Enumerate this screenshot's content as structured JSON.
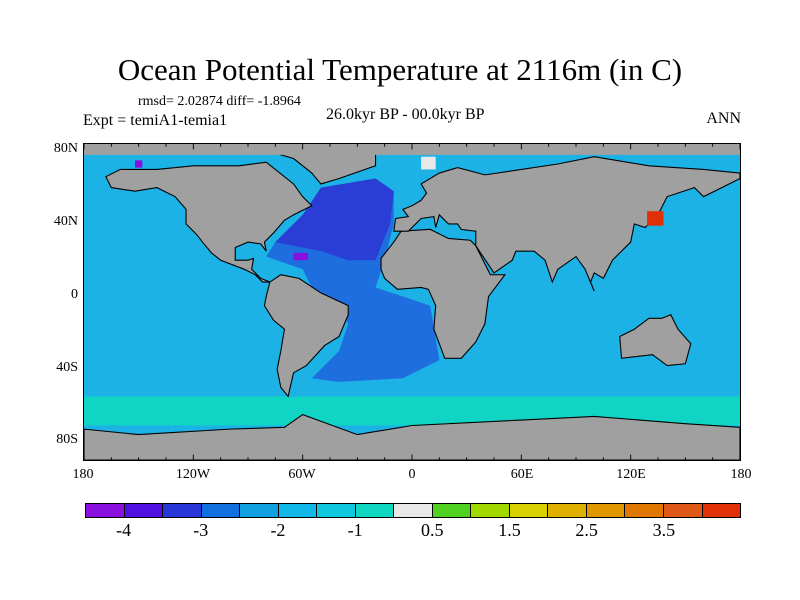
{
  "title": "Ocean Potential Temperature at 2116m (in C)",
  "stats": "rmsd= 2.02874 diff= -1.8964",
  "expt": "Expt = temiA1-temia1",
  "period": "26.0kyr BP - 00.0kyr BP",
  "season": "ANN",
  "lat_labels": [
    "80N",
    "40N",
    "0",
    "40S",
    "80S"
  ],
  "lon_labels": [
    "180",
    "120W",
    "60W",
    "0",
    "60E",
    "120E",
    "180"
  ],
  "colorbar": {
    "colors": [
      "#8a10e0",
      "#5010e0",
      "#2838d8",
      "#1070e0",
      "#10a0e0",
      "#10b8e8",
      "#10c8e0",
      "#10d8c0",
      "#e8e8e8",
      "#50d020",
      "#a0d800",
      "#d8d000",
      "#e0b000",
      "#e09800",
      "#e07800",
      "#e05818",
      "#e03008"
    ],
    "boundaries": [
      -4,
      -3.5,
      -3,
      -2.5,
      -2,
      -1.5,
      -1,
      -0.5,
      0.5,
      1,
      1.5,
      2,
      2.5,
      3,
      3.5,
      4
    ],
    "labels": [
      "-4",
      "-3",
      "-2",
      "-1",
      "0.5",
      "1.5",
      "2.5",
      "3.5"
    ]
  },
  "colors": {
    "ocean": "#1cb2e6",
    "land": "#a0a0a0",
    "atlantic": "#1e6ee0",
    "north_atlantic": "#2a3ed6",
    "southern": "#10d4c4"
  }
}
